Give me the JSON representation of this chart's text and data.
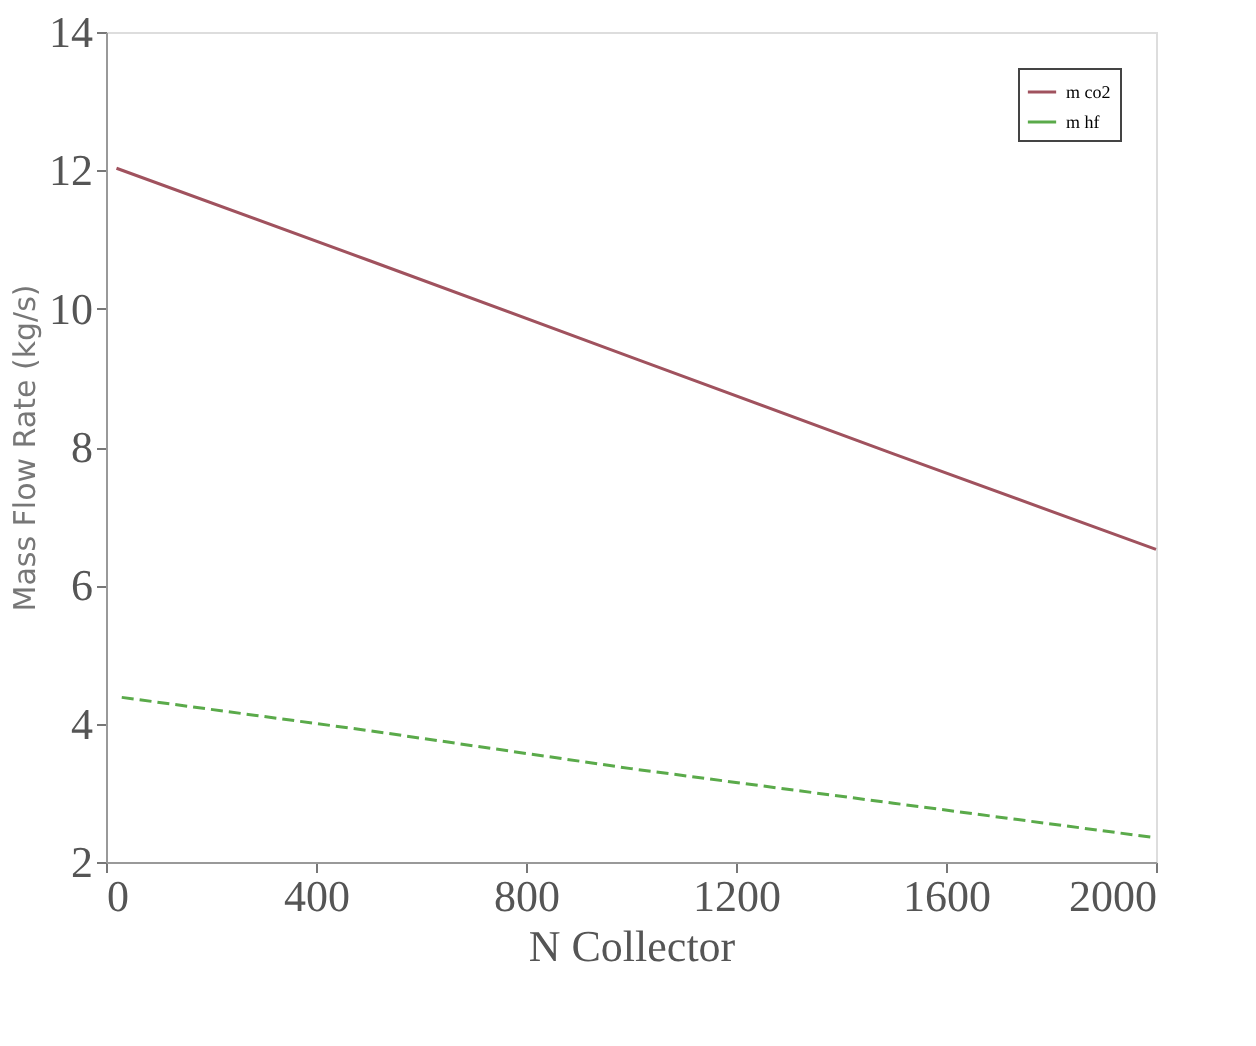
{
  "chart_data": {
    "type": "line",
    "xlabel": "N Collector",
    "ylabel": "Mass Flow Rate (kg/s)",
    "xlim": [
      0,
      2000
    ],
    "xticks": [
      0,
      400,
      800,
      1200,
      1600,
      2000
    ],
    "ylim": [
      2,
      14
    ],
    "yticks": [
      2,
      4,
      6,
      8,
      10,
      12,
      14
    ],
    "grid": false,
    "legend": "top right",
    "series": [
      {
        "name": "m co2",
        "color": "#a0525e",
        "line_style": "solid",
        "x": [
          20,
          500,
          1000,
          1500,
          2000
        ],
        "values": [
          12.03,
          10.7,
          9.3,
          7.9,
          6.52
        ]
      },
      {
        "name": "m hf",
        "color": "#5aaa4a",
        "line_style": "dashed",
        "x": [
          30,
          500,
          1000,
          1500,
          2000
        ],
        "values": [
          4.38,
          3.9,
          3.35,
          2.85,
          2.35
        ]
      }
    ]
  }
}
